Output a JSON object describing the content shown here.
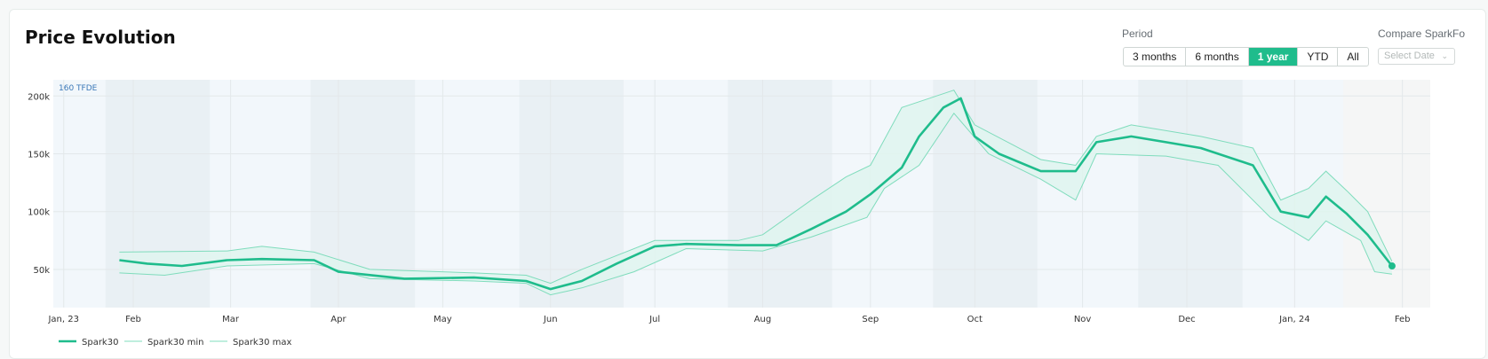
{
  "title": "Price Evolution",
  "controls": {
    "period_label": "Period",
    "period_options": [
      "3 months",
      "6 months",
      "1 year",
      "YTD",
      "All"
    ],
    "period_selected": "1 year",
    "compare_label": "Compare SparkFo",
    "select_placeholder": "Select Date"
  },
  "colors": {
    "accent": "#1fbc8c",
    "band": "#dff5ee",
    "minmax": "#7fdcbc"
  },
  "chart_data": {
    "type": "line",
    "corner_label": "160 TFDE",
    "x_ticks": [
      "Jan, 23",
      "Feb",
      "Mar",
      "Apr",
      "May",
      "Jun",
      "Jul",
      "Aug",
      "Sep",
      "Oct",
      "Nov",
      "Dec",
      "Jan, 24",
      "Feb"
    ],
    "y_ticks": [
      "50k",
      "100k",
      "150k",
      "200k"
    ],
    "ylim": [
      17000,
      214000
    ],
    "xlim": [
      "2023-01-09",
      "2024-02-09"
    ],
    "legend": [
      "Spark30",
      "Spark30 min",
      "Spark30 max"
    ],
    "series": [
      {
        "name": "Spark30",
        "x": [
          "2023-01-28",
          "2023-02-05",
          "2023-02-15",
          "2023-02-28",
          "2023-03-10",
          "2023-03-25",
          "2023-04-01",
          "2023-04-20",
          "2023-05-10",
          "2023-05-25",
          "2023-06-01",
          "2023-06-10",
          "2023-06-20",
          "2023-07-01",
          "2023-07-10",
          "2023-07-25",
          "2023-08-05",
          "2023-08-15",
          "2023-08-25",
          "2023-09-01",
          "2023-09-10",
          "2023-09-15",
          "2023-09-22",
          "2023-09-27",
          "2023-10-01",
          "2023-10-08",
          "2023-10-20",
          "2023-10-30",
          "2023-11-05",
          "2023-11-15",
          "2023-11-25",
          "2023-12-05",
          "2023-12-20",
          "2023-12-28",
          "2024-01-05",
          "2024-01-10",
          "2024-01-16",
          "2024-01-22",
          "2024-01-29"
        ],
        "y": [
          58000,
          55000,
          53000,
          58000,
          59000,
          58000,
          48000,
          42000,
          43000,
          40000,
          33000,
          40000,
          55000,
          70000,
          72000,
          71000,
          71000,
          85000,
          100000,
          115000,
          138000,
          165000,
          190000,
          198000,
          165000,
          150000,
          135000,
          135000,
          160000,
          165000,
          160000,
          155000,
          140000,
          100000,
          95000,
          113000,
          98000,
          80000,
          53000
        ]
      },
      {
        "name": "Spark30 min",
        "x": [
          "2023-01-28",
          "2023-02-10",
          "2023-02-28",
          "2023-03-25",
          "2023-04-10",
          "2023-05-10",
          "2023-05-25",
          "2023-06-01",
          "2023-06-10",
          "2023-06-25",
          "2023-07-10",
          "2023-08-01",
          "2023-08-15",
          "2023-08-31",
          "2023-09-05",
          "2023-09-15",
          "2023-09-25",
          "2023-10-05",
          "2023-10-20",
          "2023-10-30",
          "2023-11-05",
          "2023-11-25",
          "2023-12-10",
          "2023-12-25",
          "2024-01-05",
          "2024-01-10",
          "2024-01-20",
          "2024-01-24",
          "2024-01-29"
        ],
        "y": [
          47000,
          45000,
          53000,
          55000,
          42000,
          40000,
          38000,
          28000,
          34000,
          48000,
          68000,
          66000,
          78000,
          95000,
          120000,
          140000,
          185000,
          150000,
          128000,
          110000,
          150000,
          148000,
          140000,
          95000,
          75000,
          92000,
          75000,
          48000,
          46000
        ]
      },
      {
        "name": "Spark30 max",
        "x": [
          "2023-01-28",
          "2023-02-28",
          "2023-03-10",
          "2023-03-25",
          "2023-04-10",
          "2023-05-10",
          "2023-05-25",
          "2023-06-01",
          "2023-06-10",
          "2023-06-20",
          "2023-07-01",
          "2023-07-25",
          "2023-08-01",
          "2023-08-15",
          "2023-08-25",
          "2023-09-01",
          "2023-09-10",
          "2023-09-25",
          "2023-10-01",
          "2023-10-20",
          "2023-10-30",
          "2023-11-05",
          "2023-11-15",
          "2023-12-05",
          "2023-12-20",
          "2023-12-28",
          "2024-01-05",
          "2024-01-10",
          "2024-01-16",
          "2024-01-22",
          "2024-01-29"
        ],
        "y": [
          65000,
          66000,
          70000,
          65000,
          50000,
          47000,
          45000,
          38000,
          50000,
          62000,
          75000,
          75000,
          80000,
          110000,
          130000,
          140000,
          190000,
          205000,
          175000,
          145000,
          140000,
          165000,
          175000,
          165000,
          155000,
          110000,
          120000,
          135000,
          118000,
          100000,
          57000
        ]
      }
    ],
    "end_point": {
      "x": "2024-01-29",
      "y": 53000
    }
  }
}
